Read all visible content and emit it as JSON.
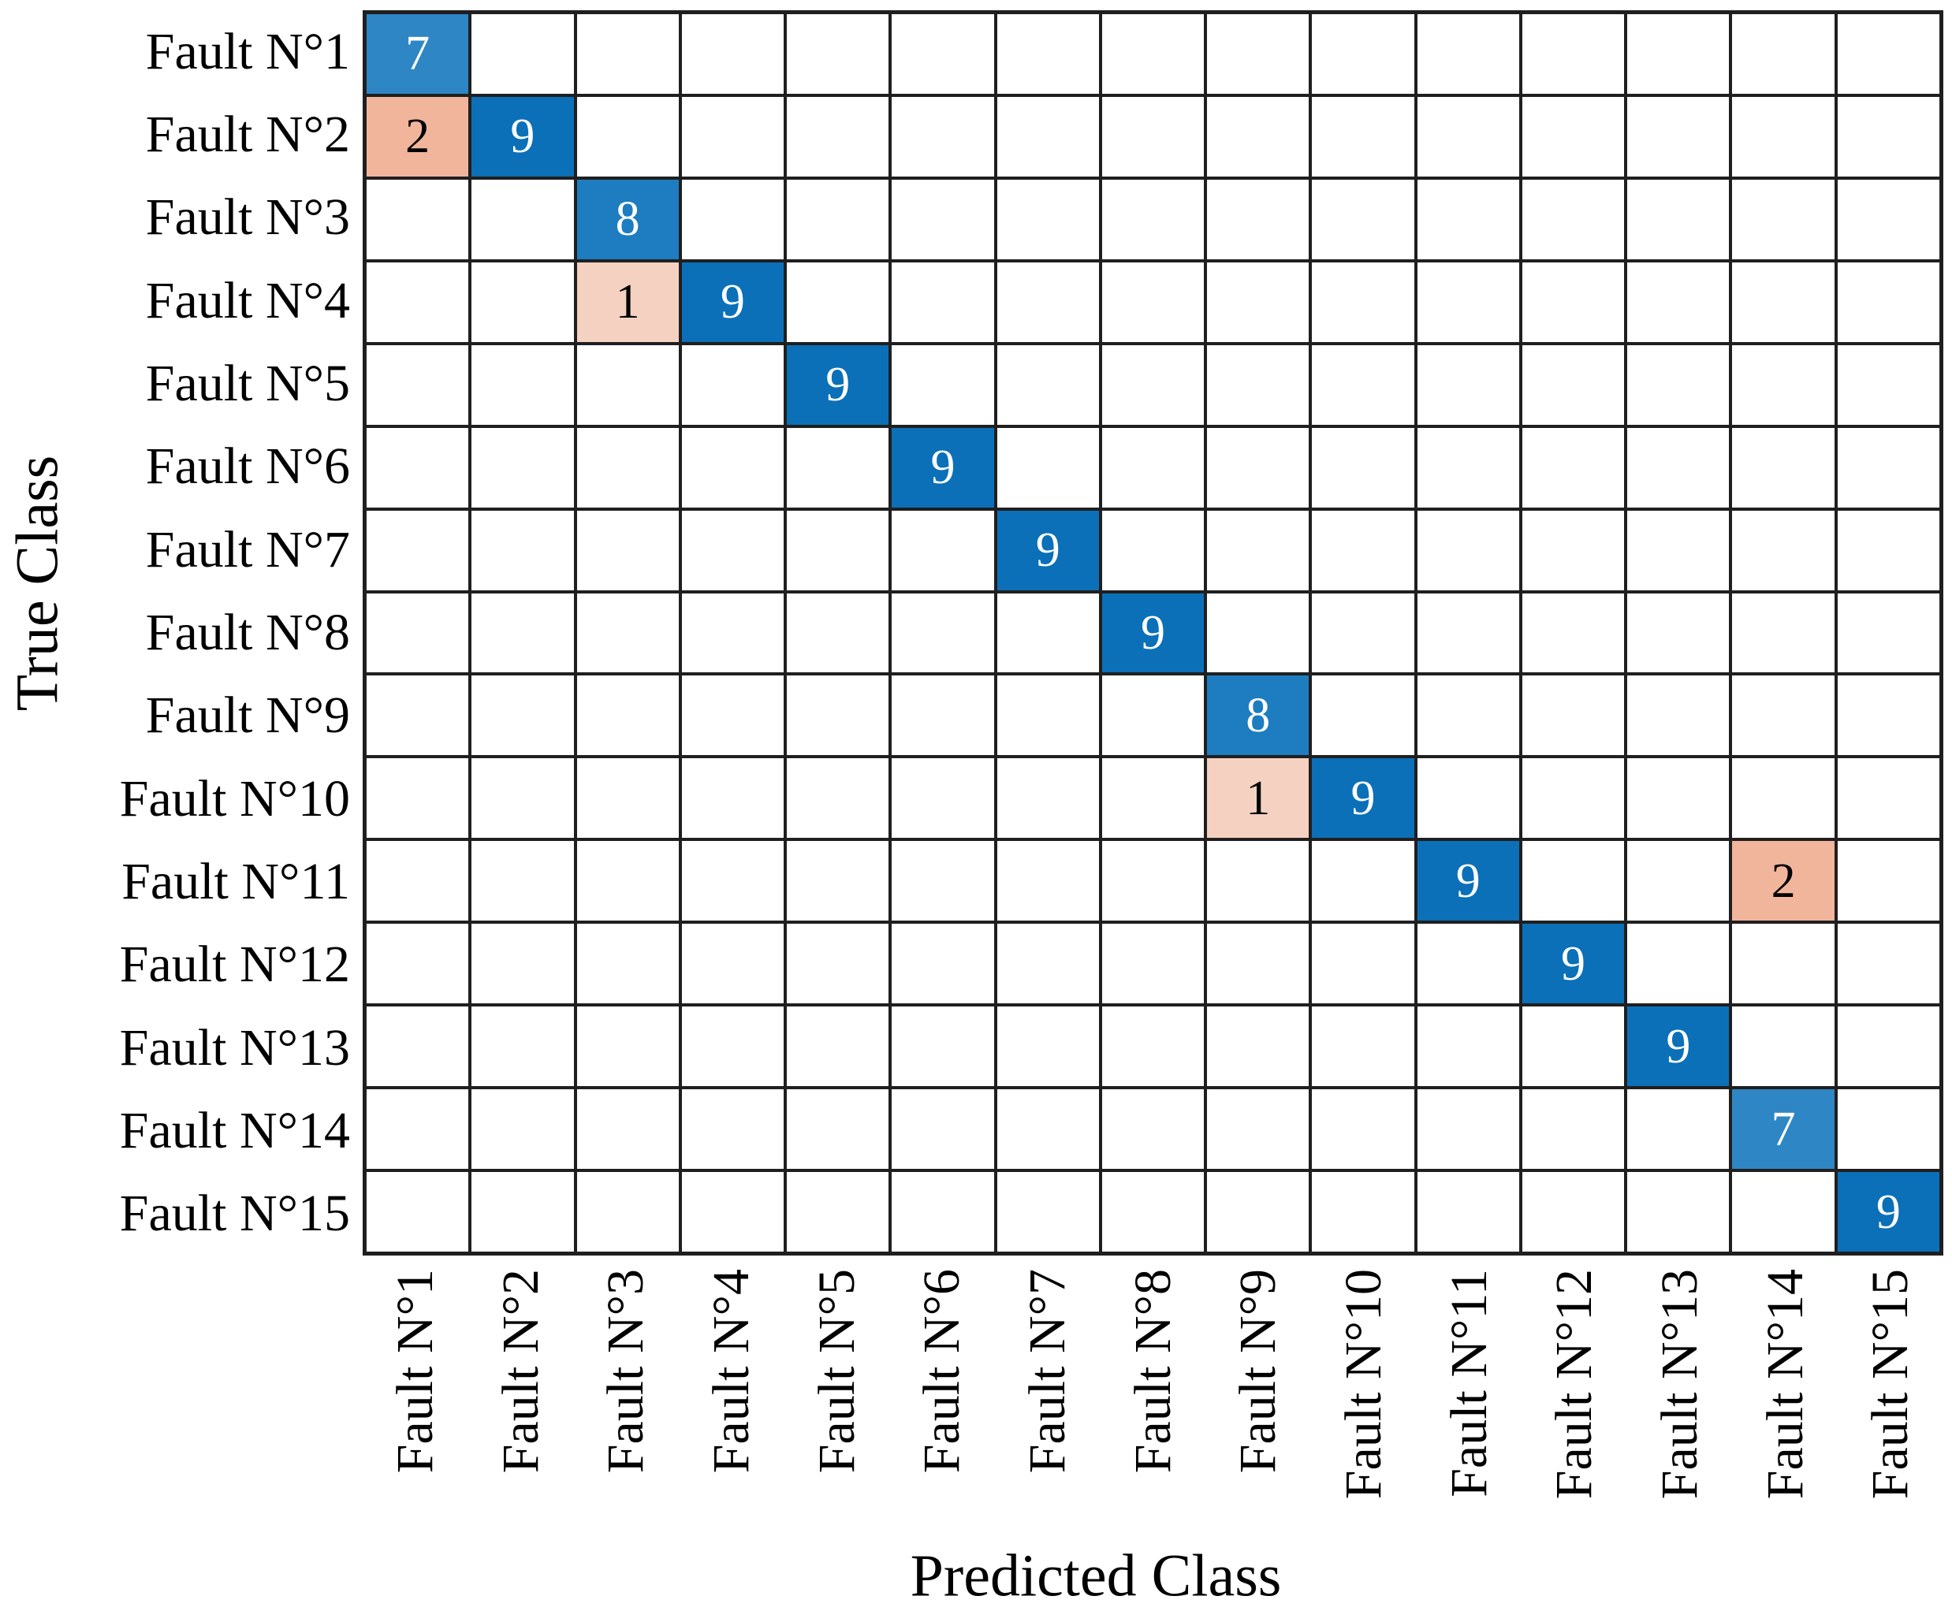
{
  "figure": {
    "background": "#ffffff"
  },
  "chart_data": {
    "type": "heatmap",
    "subtype": "confusion_matrix",
    "title": "",
    "xlabel": "Predicted Class",
    "ylabel": "True Class",
    "x_tick_labels": [
      "Fault N°1",
      "Fault N°2",
      "Fault N°3",
      "Fault N°4",
      "Fault N°5",
      "Fault N°6",
      "Fault N°7",
      "Fault N°8",
      "Fault N°9",
      "Fault N°10",
      "Fault N°11",
      "Fault N°12",
      "Fault N°13",
      "Fault N°14",
      "Fault N°15"
    ],
    "y_tick_labels": [
      "Fault N°1",
      "Fault N°2",
      "Fault N°3",
      "Fault N°4",
      "Fault N°5",
      "Fault N°6",
      "Fault N°7",
      "Fault N°8",
      "Fault N°9",
      "Fault N°10",
      "Fault N°11",
      "Fault N°12",
      "Fault N°13",
      "Fault N°14",
      "Fault N°15"
    ],
    "matrix_note": "rows = true class, columns = predicted class, 0 = empty white cell (no number shown)",
    "matrix": [
      [
        7,
        0,
        0,
        0,
        0,
        0,
        0,
        0,
        0,
        0,
        0,
        0,
        0,
        0,
        0
      ],
      [
        2,
        9,
        0,
        0,
        0,
        0,
        0,
        0,
        0,
        0,
        0,
        0,
        0,
        0,
        0
      ],
      [
        0,
        0,
        8,
        0,
        0,
        0,
        0,
        0,
        0,
        0,
        0,
        0,
        0,
        0,
        0
      ],
      [
        0,
        0,
        1,
        9,
        0,
        0,
        0,
        0,
        0,
        0,
        0,
        0,
        0,
        0,
        0
      ],
      [
        0,
        0,
        0,
        0,
        9,
        0,
        0,
        0,
        0,
        0,
        0,
        0,
        0,
        0,
        0
      ],
      [
        0,
        0,
        0,
        0,
        0,
        9,
        0,
        0,
        0,
        0,
        0,
        0,
        0,
        0,
        0
      ],
      [
        0,
        0,
        0,
        0,
        0,
        0,
        9,
        0,
        0,
        0,
        0,
        0,
        0,
        0,
        0
      ],
      [
        0,
        0,
        0,
        0,
        0,
        0,
        0,
        9,
        0,
        0,
        0,
        0,
        0,
        0,
        0
      ],
      [
        0,
        0,
        0,
        0,
        0,
        0,
        0,
        0,
        8,
        0,
        0,
        0,
        0,
        0,
        0
      ],
      [
        0,
        0,
        0,
        0,
        0,
        0,
        0,
        0,
        1,
        9,
        0,
        0,
        0,
        0,
        0
      ],
      [
        0,
        0,
        0,
        0,
        0,
        0,
        0,
        0,
        0,
        0,
        9,
        0,
        0,
        2,
        0
      ],
      [
        0,
        0,
        0,
        0,
        0,
        0,
        0,
        0,
        0,
        0,
        0,
        9,
        0,
        0,
        0
      ],
      [
        0,
        0,
        0,
        0,
        0,
        0,
        0,
        0,
        0,
        0,
        0,
        0,
        9,
        0,
        0
      ],
      [
        0,
        0,
        0,
        0,
        0,
        0,
        0,
        0,
        0,
        0,
        0,
        0,
        0,
        7,
        0
      ],
      [
        0,
        0,
        0,
        0,
        0,
        0,
        0,
        0,
        0,
        0,
        0,
        0,
        0,
        0,
        9
      ]
    ],
    "colors": {
      "diagonal_by_value": {
        "7": "#2f86c4",
        "8": "#1d7dc0",
        "9": "#0b70b8"
      },
      "off_diagonal_by_value": {
        "1": "#f4d1c0",
        "2": "#f1b59c"
      },
      "empty_cell": "#ffffff",
      "grid_line": "#1f1f1f",
      "diagonal_text": "#ffffff",
      "off_diagonal_text": "#000000"
    },
    "grid_on": true,
    "legend": "none"
  }
}
